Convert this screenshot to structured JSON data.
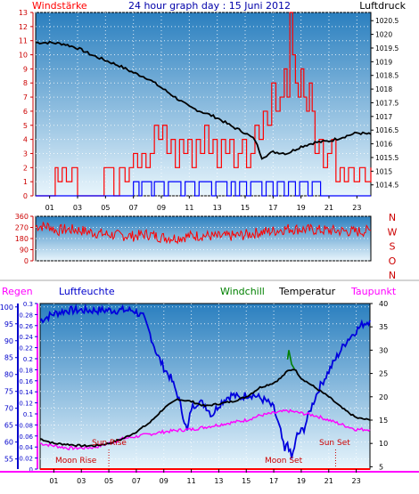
{
  "header": {
    "left": "Windstärke",
    "center": "24 hour graph day : 15 Juni 2012",
    "right": "Luftdruck"
  },
  "colors": {
    "background": "#ffffff",
    "plot_top": "#2a7fbf",
    "plot_bottom": "#e8f5fc",
    "wind_gust": "#ff0000",
    "wind_avg": "#0000ff",
    "pressure": "#000000",
    "wind_direction": "#ff0000",
    "rain": "#ff0000",
    "humidity": "#0000dd",
    "windchill": "#008000",
    "temperature": "#000000",
    "dewpoint": "#ff00ff",
    "rain_axis": "#ff00ff"
  },
  "chart_data": [
    {
      "type": "bar",
      "id": "wind_pressure",
      "title": "24 hour graph day : 15 Juni 2012",
      "x_ticks": [
        "01",
        "03",
        "05",
        "07",
        "09",
        "11",
        "13",
        "15",
        "17",
        "19",
        "21",
        "23"
      ],
      "y_left_label": "Windstärke",
      "y_left_ticks": [
        "0",
        "1",
        "2",
        "3",
        "4",
        "5",
        "6",
        "7",
        "8",
        "9",
        "10",
        "11",
        "12",
        "13"
      ],
      "y_left_range": [
        0,
        13
      ],
      "y_right_label": "Luftdruck",
      "y_right_ticks": [
        "1014.5",
        "1015",
        "1015.5",
        "1016",
        "1016.5",
        "1017",
        "1017.5",
        "1018",
        "1018.5",
        "1019",
        "1019.5",
        "1020",
        "1020.5"
      ],
      "y_right_range": [
        1014.1,
        1020.8
      ],
      "wind_gust": [
        [
          0,
          0
        ],
        [
          1.3,
          0
        ],
        [
          1.4,
          2
        ],
        [
          1.6,
          1
        ],
        [
          1.9,
          2
        ],
        [
          2.2,
          1
        ],
        [
          2.6,
          2
        ],
        [
          3.0,
          0
        ],
        [
          4.7,
          0
        ],
        [
          4.9,
          2
        ],
        [
          5.3,
          2
        ],
        [
          5.6,
          0
        ],
        [
          6.0,
          2
        ],
        [
          6.4,
          1
        ],
        [
          6.7,
          2
        ],
        [
          7.0,
          3
        ],
        [
          7.3,
          2
        ],
        [
          7.6,
          3
        ],
        [
          7.9,
          2
        ],
        [
          8.2,
          3
        ],
        [
          8.5,
          5
        ],
        [
          8.8,
          4
        ],
        [
          9.1,
          5
        ],
        [
          9.4,
          3
        ],
        [
          9.7,
          4
        ],
        [
          10.0,
          2
        ],
        [
          10.3,
          4
        ],
        [
          10.6,
          3
        ],
        [
          10.9,
          4
        ],
        [
          11.2,
          2
        ],
        [
          11.5,
          4
        ],
        [
          11.8,
          3
        ],
        [
          12.1,
          5
        ],
        [
          12.4,
          3
        ],
        [
          12.7,
          4
        ],
        [
          13.0,
          2
        ],
        [
          13.3,
          4
        ],
        [
          13.6,
          3
        ],
        [
          13.9,
          4
        ],
        [
          14.2,
          2
        ],
        [
          14.5,
          3
        ],
        [
          14.8,
          4
        ],
        [
          15.1,
          2
        ],
        [
          15.4,
          3
        ],
        [
          15.7,
          5
        ],
        [
          16.0,
          4
        ],
        [
          16.3,
          6
        ],
        [
          16.6,
          5
        ],
        [
          16.9,
          8
        ],
        [
          17.2,
          6
        ],
        [
          17.5,
          7
        ],
        [
          17.8,
          9
        ],
        [
          18.0,
          7
        ],
        [
          18.2,
          13
        ],
        [
          18.4,
          10
        ],
        [
          18.6,
          8
        ],
        [
          18.8,
          7
        ],
        [
          19.0,
          9
        ],
        [
          19.2,
          7
        ],
        [
          19.4,
          6
        ],
        [
          19.6,
          8
        ],
        [
          19.8,
          6
        ],
        [
          20.0,
          3
        ],
        [
          20.3,
          4
        ],
        [
          20.6,
          2
        ],
        [
          20.9,
          3
        ],
        [
          21.2,
          4
        ],
        [
          21.5,
          1
        ],
        [
          21.8,
          2
        ],
        [
          22.1,
          1
        ],
        [
          22.4,
          2
        ],
        [
          22.8,
          1
        ],
        [
          23.2,
          2
        ],
        [
          23.6,
          1
        ],
        [
          24,
          2
        ]
      ],
      "wind_avg": [
        [
          0,
          0
        ],
        [
          6.8,
          0
        ],
        [
          7.0,
          1
        ],
        [
          7.4,
          0
        ],
        [
          7.6,
          1
        ],
        [
          8.0,
          1
        ],
        [
          8.3,
          0
        ],
        [
          8.5,
          1
        ],
        [
          9.0,
          1
        ],
        [
          9.2,
          0
        ],
        [
          9.5,
          1
        ],
        [
          10.2,
          1
        ],
        [
          10.4,
          0
        ],
        [
          10.7,
          1
        ],
        [
          11.2,
          1
        ],
        [
          11.4,
          0
        ],
        [
          11.7,
          1
        ],
        [
          12.4,
          1
        ],
        [
          12.6,
          0
        ],
        [
          12.9,
          1
        ],
        [
          13.5,
          1
        ],
        [
          13.7,
          0
        ],
        [
          14.0,
          1
        ],
        [
          14.3,
          0
        ],
        [
          14.6,
          1
        ],
        [
          15.1,
          0
        ],
        [
          15.4,
          1
        ],
        [
          16.0,
          1
        ],
        [
          16.2,
          0
        ],
        [
          16.5,
          1
        ],
        [
          17.0,
          0
        ],
        [
          17.3,
          1
        ],
        [
          17.8,
          0
        ],
        [
          18.1,
          1
        ],
        [
          18.6,
          0
        ],
        [
          18.9,
          1
        ],
        [
          19.5,
          0
        ],
        [
          19.8,
          1
        ],
        [
          20.1,
          1
        ],
        [
          20.4,
          0
        ],
        [
          24,
          0
        ]
      ],
      "pressure": [
        [
          0,
          1019.7
        ],
        [
          1,
          1019.7
        ],
        [
          2,
          1019.65
        ],
        [
          3,
          1019.5
        ],
        [
          4,
          1019.25
        ],
        [
          5,
          1019.05
        ],
        [
          6,
          1018.85
        ],
        [
          7,
          1018.6
        ],
        [
          8,
          1018.4
        ],
        [
          9,
          1018.05
        ],
        [
          10,
          1017.7
        ],
        [
          11,
          1017.35
        ],
        [
          12,
          1017.15
        ],
        [
          13,
          1016.95
        ],
        [
          14,
          1016.65
        ],
        [
          15,
          1016.4
        ],
        [
          15.7,
          1016.15
        ],
        [
          16.2,
          1015.5
        ],
        [
          17,
          1015.7
        ],
        [
          18,
          1015.65
        ],
        [
          19,
          1015.9
        ],
        [
          20,
          1016.05
        ],
        [
          21,
          1016.1
        ],
        [
          22,
          1016.25
        ],
        [
          23,
          1016.4
        ],
        [
          24,
          1016.35
        ]
      ]
    },
    {
      "type": "line",
      "id": "wind_direction",
      "x_ticks": [
        "01",
        "03",
        "05",
        "07",
        "09",
        "11",
        "13",
        "15",
        "17",
        "19",
        "21",
        "23"
      ],
      "y_left_ticks": [
        "0",
        "90",
        "180",
        "270",
        "360"
      ],
      "y_range": [
        0,
        360
      ],
      "y_right_ticks": [
        "N",
        "W",
        "S",
        "O",
        "N"
      ],
      "values": [
        [
          0,
          280
        ],
        [
          1,
          280
        ],
        [
          1.5,
          240
        ],
        [
          2,
          255
        ],
        [
          3,
          250
        ],
        [
          4,
          230
        ],
        [
          5,
          215
        ],
        [
          6,
          205
        ],
        [
          7,
          200
        ],
        [
          8,
          215
        ],
        [
          9,
          190
        ],
        [
          10,
          185
        ],
        [
          11,
          200
        ],
        [
          12,
          205
        ],
        [
          13,
          195
        ],
        [
          14,
          200
        ],
        [
          15,
          210
        ],
        [
          16,
          230
        ],
        [
          17,
          240
        ],
        [
          18,
          260
        ],
        [
          19,
          255
        ],
        [
          20,
          250
        ],
        [
          21,
          245
        ],
        [
          22,
          240
        ],
        [
          23,
          235
        ],
        [
          24,
          245
        ]
      ]
    },
    {
      "type": "line",
      "id": "weather_lower",
      "x_ticks": [
        "01",
        "03",
        "05",
        "07",
        "09",
        "11",
        "13",
        "15",
        "17",
        "19",
        "21",
        "23"
      ],
      "legend": {
        "rain": "Regen",
        "humidity": "Luftfeuchte",
        "windchill": "Windchill",
        "temperature": "Temperatur",
        "dewpoint": "Taupunkt"
      },
      "humidity_ticks": [
        "55",
        "60",
        "65",
        "70",
        "75",
        "80",
        "85",
        "90",
        "95",
        "100"
      ],
      "humidity_range": [
        52,
        101
      ],
      "rain_ticks": [
        "0",
        "0.02",
        "0.04",
        "0.06",
        "0.08",
        "0.1",
        "0.12",
        "0.14",
        "0.16",
        "0.18",
        "0.2",
        "0.22",
        "0.24",
        "0.26",
        "0.28",
        "0.3"
      ],
      "rain_range": [
        0,
        0.3
      ],
      "temperature_ticks": [
        "5",
        "10",
        "15",
        "20",
        "25",
        "30",
        "35",
        "40"
      ],
      "temperature_range": [
        4.5,
        40
      ],
      "rain": [
        [
          0,
          0
        ],
        [
          24,
          0
        ]
      ],
      "humidity": [
        [
          0,
          96
        ],
        [
          0.5,
          97
        ],
        [
          1,
          98
        ],
        [
          2,
          99
        ],
        [
          3,
          99
        ],
        [
          4,
          99
        ],
        [
          5,
          99
        ],
        [
          6,
          99
        ],
        [
          6.8,
          99
        ],
        [
          7.5,
          97
        ],
        [
          8.0,
          92
        ],
        [
          8.5,
          86
        ],
        [
          9.0,
          82
        ],
        [
          9.5,
          79
        ],
        [
          10.0,
          74
        ],
        [
          10.4,
          68
        ],
        [
          10.7,
          63
        ],
        [
          11.0,
          70
        ],
        [
          11.5,
          72
        ],
        [
          12.0,
          71
        ],
        [
          12.5,
          68
        ],
        [
          13.0,
          71
        ],
        [
          13.5,
          73
        ],
        [
          14.0,
          74
        ],
        [
          14.5,
          73
        ],
        [
          15.0,
          74
        ],
        [
          15.5,
          74
        ],
        [
          16.0,
          73
        ],
        [
          16.5,
          72
        ],
        [
          17.0,
          70
        ],
        [
          17.5,
          63
        ],
        [
          17.8,
          57
        ],
        [
          18.0,
          60
        ],
        [
          18.3,
          55
        ],
        [
          18.7,
          62
        ],
        [
          19.2,
          64
        ],
        [
          19.7,
          70
        ],
        [
          20.3,
          76
        ],
        [
          21.0,
          81
        ],
        [
          21.7,
          86
        ],
        [
          22.3,
          90
        ],
        [
          23.0,
          93
        ],
        [
          23.5,
          95
        ],
        [
          24,
          96
        ]
      ],
      "temperature": [
        [
          0,
          11
        ],
        [
          1,
          10
        ],
        [
          2,
          9.8
        ],
        [
          3,
          9.5
        ],
        [
          4,
          9.5
        ],
        [
          5,
          10
        ],
        [
          6,
          11
        ],
        [
          7,
          12.5
        ],
        [
          8,
          14.5
        ],
        [
          9,
          17.5
        ],
        [
          10,
          19.5
        ],
        [
          11,
          19
        ],
        [
          12,
          18
        ],
        [
          13,
          18.5
        ],
        [
          14,
          19
        ],
        [
          15,
          20
        ],
        [
          16,
          22
        ],
        [
          17,
          23
        ],
        [
          17.5,
          24
        ],
        [
          18,
          25.5
        ],
        [
          18.5,
          26
        ],
        [
          19,
          24
        ],
        [
          20,
          22
        ],
        [
          21,
          20
        ],
        [
          22,
          17.5
        ],
        [
          23,
          15.5
        ],
        [
          24,
          15
        ]
      ],
      "windchill": [
        [
          18,
          28
        ],
        [
          18.1,
          30
        ],
        [
          18.3,
          27
        ],
        [
          18.5,
          26
        ]
      ],
      "dewpoint": [
        [
          0,
          10
        ],
        [
          1,
          9.5
        ],
        [
          2,
          9
        ],
        [
          3,
          9
        ],
        [
          4,
          9.2
        ],
        [
          5,
          10
        ],
        [
          6,
          11
        ],
        [
          7,
          11.5
        ],
        [
          8,
          12
        ],
        [
          9,
          12.5
        ],
        [
          10,
          12.8
        ],
        [
          11,
          13
        ],
        [
          12,
          13.5
        ],
        [
          13,
          14
        ],
        [
          14,
          14.5
        ],
        [
          15,
          15
        ],
        [
          16,
          16
        ],
        [
          17,
          16.5
        ],
        [
          18,
          17
        ],
        [
          19,
          16.5
        ],
        [
          20,
          16
        ],
        [
          21,
          15
        ],
        [
          22,
          14
        ],
        [
          23,
          13
        ],
        [
          24,
          13
        ]
      ],
      "annotations": {
        "sun_rise": "Sun Rise",
        "sun_set": "Sun Set",
        "moon_rise": "Moon Rise",
        "moon_set": "Moon Set",
        "sun_rise_hour": 5,
        "sun_set_hour": 21.5
      }
    }
  ]
}
